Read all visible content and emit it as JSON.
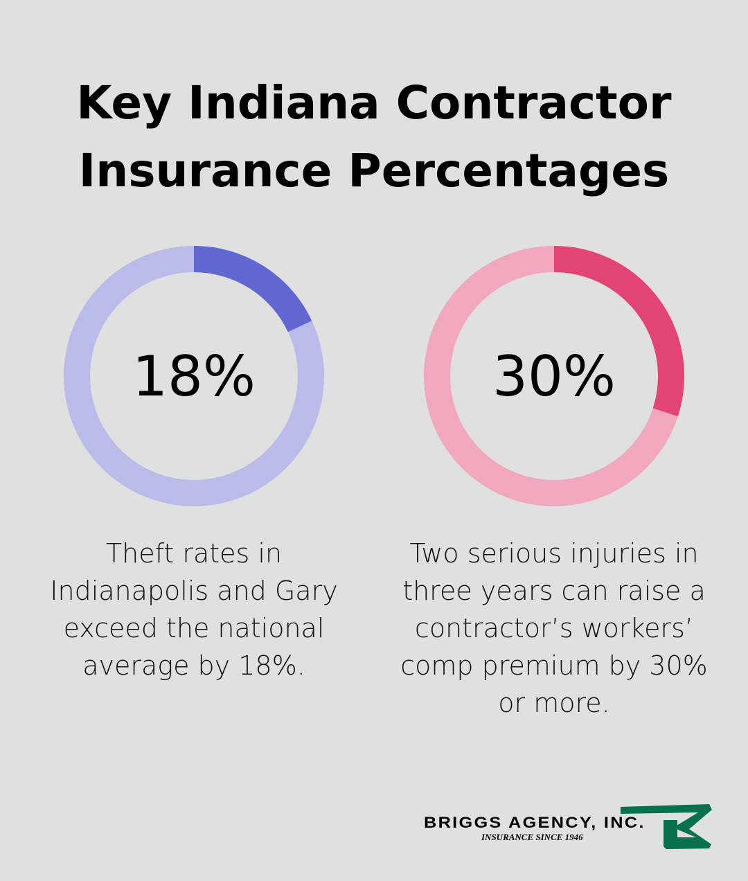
{
  "title": {
    "line1": "Key Indiana Contractor",
    "line2": "Insurance Percentages"
  },
  "stats": [
    {
      "value": "18%",
      "fraction": 0.18,
      "description": "Theft rates in Indianapolis and Gary exceed the national average by 18%.",
      "color_fill": "#6166d0",
      "color_track": "#b9bce8"
    },
    {
      "value": "30%",
      "fraction": 0.3,
      "description": "Two serious injuries in three years can raise a contractor’s workers’ comp premium by 30% or more.",
      "color_fill": "#e24475",
      "color_track": "#f1a8bf"
    }
  ],
  "logo": {
    "name": "BRIGGS AGENCY, INC.",
    "tagline": "INSURANCE SINCE 1946",
    "color": "#07704d"
  }
}
